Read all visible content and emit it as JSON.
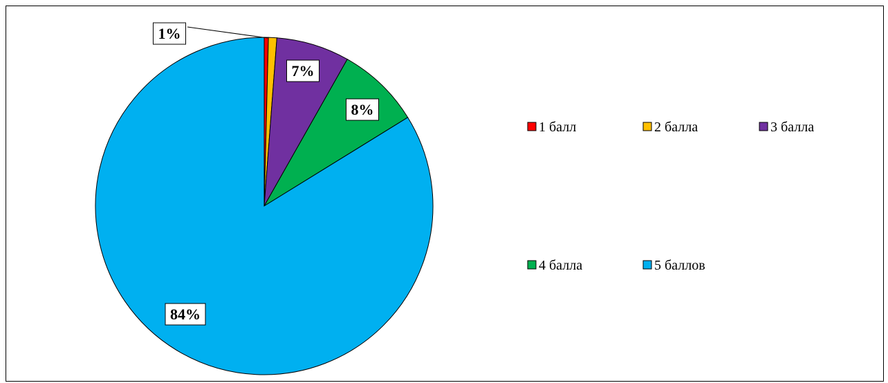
{
  "chart_data": {
    "type": "pie",
    "categories": [
      "1 балл",
      "2 балла",
      "3 балла",
      "4 балла",
      "5 баллов"
    ],
    "values": [
      0.4,
      0.8,
      7,
      8,
      83.8
    ],
    "data_labels": [
      "",
      "1%",
      "7%",
      "8%",
      "84%"
    ],
    "colors": [
      "#FF0000",
      "#FFC000",
      "#7030A0",
      "#00B050",
      "#00B0F0"
    ],
    "start_angle_deg": 0,
    "direction": "clockwise",
    "legend_position": "right",
    "title": ""
  }
}
